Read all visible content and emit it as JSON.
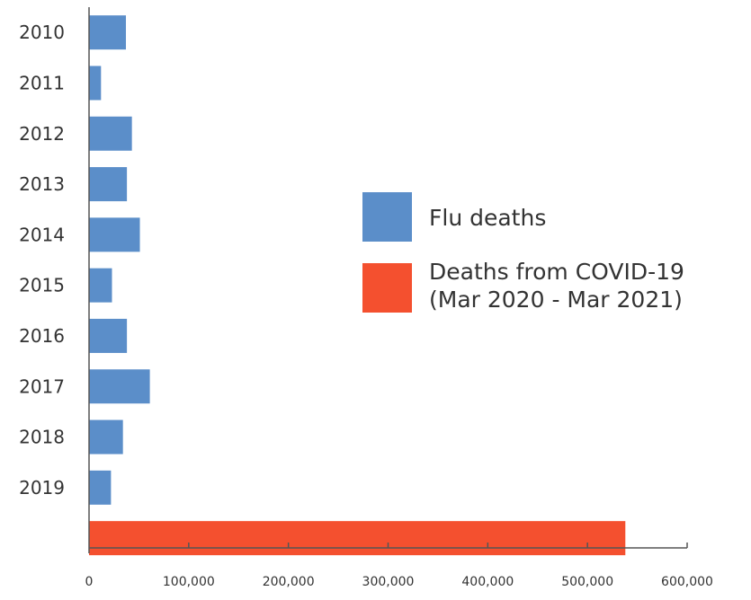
{
  "chart_data": {
    "type": "bar",
    "orientation": "horizontal",
    "categories": [
      "2010",
      "2011",
      "2012",
      "2013",
      "2014",
      "2015",
      "2016",
      "2017",
      "2018",
      "2019",
      ""
    ],
    "series": [
      {
        "name": "Flu deaths",
        "color": "#5b8ec9",
        "values": [
          37000,
          12000,
          43000,
          38000,
          51000,
          23000,
          38000,
          61000,
          34000,
          22000,
          null
        ]
      },
      {
        "name": "Deaths from COVID-19 (Mar 2020 - Mar 2021)",
        "name_lines": [
          "Deaths from COVID-19",
          "(Mar 2020 - Mar 2021)"
        ],
        "color": "#f4502f",
        "values": [
          null,
          null,
          null,
          null,
          null,
          null,
          null,
          null,
          null,
          null,
          538000
        ]
      }
    ],
    "xlim": [
      0,
      600000
    ],
    "xticks": [
      0,
      100000,
      200000,
      300000,
      400000,
      500000,
      600000
    ],
    "xtick_labels": [
      "0",
      "100,000",
      "200,000",
      "300,000",
      "400,000",
      "500,000",
      "600,000"
    ],
    "title": "",
    "xlabel": "",
    "ylabel": "",
    "grid": false,
    "legend_position": "right"
  }
}
